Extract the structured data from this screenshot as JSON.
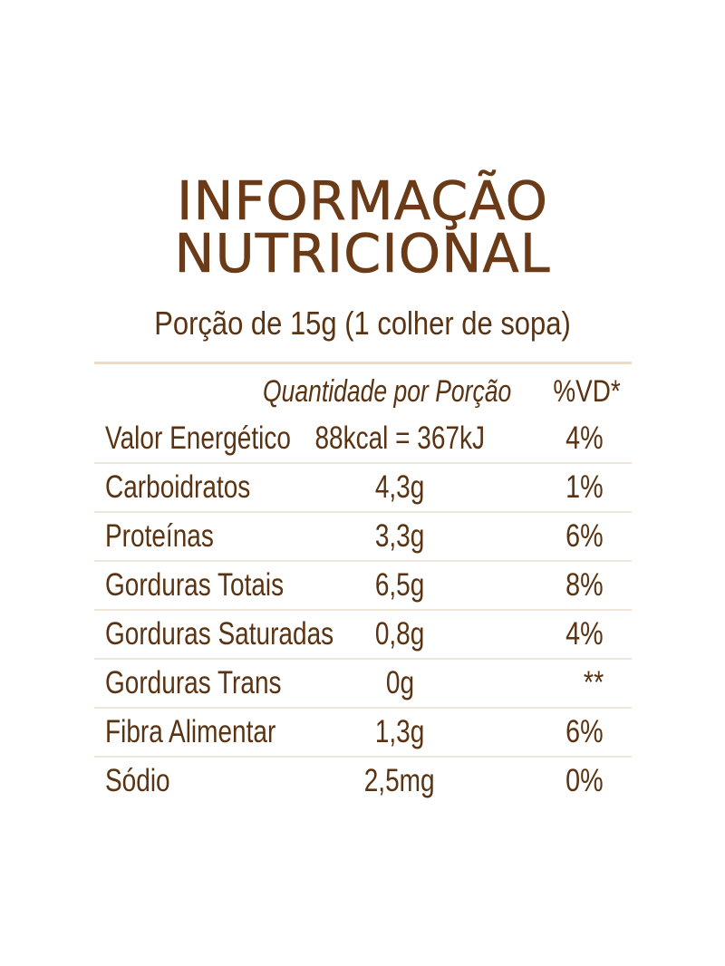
{
  "title": {
    "line1": "INFORMAÇÃO",
    "line2": "NUTRICIONAL"
  },
  "portion": "Porção de 15g (1 colher de sopa)",
  "table": {
    "headers": {
      "quantity": "Quantidade por Porção",
      "daily_value": "%VD*"
    },
    "rows": [
      {
        "nutrient": "Valor Energético",
        "amount": "88kcal = 367kJ",
        "daily_value": "4%"
      },
      {
        "nutrient": "Carboidratos",
        "amount": "4,3g",
        "daily_value": "1%"
      },
      {
        "nutrient": "Proteínas",
        "amount": "3,3g",
        "daily_value": "6%"
      },
      {
        "nutrient": "Gorduras Totais",
        "amount": "6,5g",
        "daily_value": "8%"
      },
      {
        "nutrient": "Gorduras Saturadas",
        "amount": "0,8g",
        "daily_value": "4%"
      },
      {
        "nutrient": "Gorduras Trans",
        "amount": "0g",
        "daily_value": "**"
      },
      {
        "nutrient": "Fibra Alimentar",
        "amount": "1,3g",
        "daily_value": "6%"
      },
      {
        "nutrient": "Sódio",
        "amount": "2,5mg",
        "daily_value": "0%"
      }
    ]
  },
  "colors": {
    "title": "#6b3a17",
    "text": "#5a3312",
    "divider_top": "#ecdcc3",
    "divider_row": "#efe5d9",
    "background": "#ffffff"
  }
}
